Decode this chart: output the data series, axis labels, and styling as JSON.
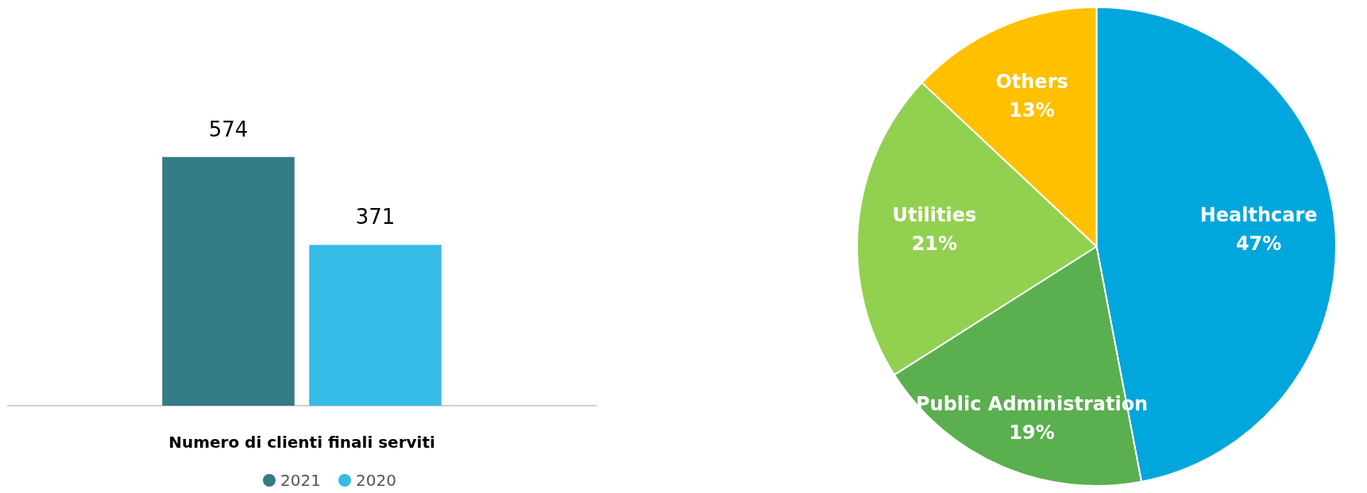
{
  "chart_data": [
    {
      "type": "bar",
      "categories": [
        null
      ],
      "xlabel": "Numero di clienti finali serviti",
      "series": [
        {
          "name": "2021",
          "color": "#337b85",
          "values": [
            574
          ]
        },
        {
          "name": "2020",
          "color": "#35bbe6",
          "values": [
            371
          ]
        }
      ],
      "data_labels": true,
      "legend": "bottom"
    },
    {
      "type": "pie",
      "categories": [
        "Healthcare",
        "Public Administration",
        "Utilities",
        "Others"
      ],
      "values": [
        47,
        19,
        21,
        13
      ],
      "colors": [
        "#00a6dc",
        "#5aaf4e",
        "#92d050",
        "#ffc000"
      ],
      "value_labels": [
        "47%",
        "19%",
        "21%",
        "13%"
      ],
      "legend": false
    }
  ]
}
